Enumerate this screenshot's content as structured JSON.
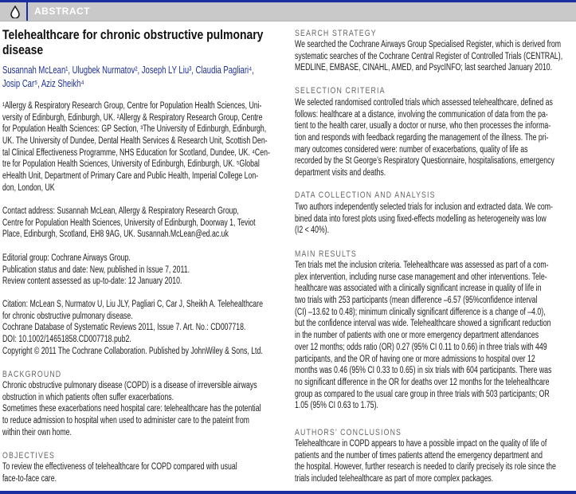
{
  "header": {
    "label": "ABSTRACT",
    "logo_icon": "cochrane-drop-icon",
    "accent_color": "#1b2fa0"
  },
  "left": {
    "title": [
      "Telehealthcare for chronic obstructive pulmonary",
      "disease"
    ],
    "authors": [
      "Susannah McLean¹, Ulugbek Nurmatov², Joseph LY Liu³, Claudia Pagliari⁴,",
      "Josip Car⁵, Aziz Sheikh⁴"
    ],
    "affiliations": [
      "¹Allergy & Respiratory Research Group, Centre for Population Health Sciences, Uni-",
      "versity of Edinburgh, Edinburgh, UK. ²Allergy & Respiratory Research Group, Centre",
      "for Population Health Sciences: GP Section, ³The University of Edinburgh, Edinburgh,",
      "UK. The University of Dundee, Dental Health Services & Research Unit, Scottish Den-",
      "tal Clinical Effectiveness Programme, NHS Education for Scotland, Dundee, UK. ⁴Cen-",
      "tre for Population Health Sciences, University of Edinburgh, Edinburgh, UK. ⁵Global",
      "eHealth Unit, Department of Primary Care and Public Health, Imperial College Lon-",
      "don, London, UK"
    ],
    "contact": [
      "Contact address: Susannah McLean, Allergy & Respiratory Research Group,",
      "Centre for Population Health Sciences, University of Edinburgh, Doorway 1, Teviot",
      "Place, Edinburgh, Scotland, EH8 9AG, UK. Susannah.McLean@ed.ac.uk"
    ],
    "editorial": [
      "Editorial group: Cochrane Airways Group.",
      "Publication status and date: New, published in Issue 7, 2011.",
      "Review content assessed as up-to-date: 12 January 2010."
    ],
    "citation": [
      "Citation: McLean S, Nurmatov U, Liu JLY, Pagliari C, Car J, Sheikh A. Telehealthcare",
      "for chronic obstructive pulmonary disease.",
      "Cochrane Database of Systematic Reviews 2011, Issue 7. Art. No.: CD007718.",
      "DOI: 10.1002/14651858.CD007718.pub2.",
      "Copyright © 2011 The Cochrane Collaboration. Published by JohnWiley & Sons, Ltd."
    ],
    "background": {
      "heading": [
        "BACKGROUND"
      ],
      "lines": [
        "Chronic obstructive pulmonary disease (COPD) is a disease of irreversible airways",
        "obstruction in which patients often suffer exacerbations.",
        "Sometimes these exacerbations need hospital care: telehealthcare has the potential",
        "to reduce admission to hospital when used to administer care to the pateint from",
        "within their own home."
      ]
    },
    "objectives": {
      "heading": [
        "OBJECTIVES"
      ],
      "lines": [
        "To review the effectiveness of telehealthcare for COPD compared with usual",
        "face-to-face care."
      ]
    }
  },
  "right": {
    "search": {
      "heading": [
        "SEARCH STRATEGY"
      ],
      "lines": [
        "We searched the Cochrane Airways Group Specialised Register, which is derived from",
        "systematic searches of the Cochrane Central Register of Controlled Trials (CENTRAL),",
        "MEDLINE, EMBASE, CINAHL, AMED, and PsycINFO; last searched January 2010."
      ]
    },
    "selection": {
      "heading": [
        "SELECTION CRITERIA"
      ],
      "lines": [
        "We selected randomised controlled trials which assessed telehealthcare, defined as",
        "follows: healthcare at a distance, involving the communication of data from the pa-",
        "tient to the health carer, usually a doctor or nurse, who then processes the informa-",
        "tion and responds with feedback regarding the management of the illness. The pri-",
        "mary outcomes considered were: number of exacerbations, quality of life as",
        "recorded by the St George’s Respiratory Questionnaire, hospitalisations, emergency",
        "department visits and deaths."
      ]
    },
    "data_collection": {
      "heading": [
        "DATA COLLECTION AND ANALYSIS"
      ],
      "lines": [
        "Two authors independently selected trials for inclusion and extracted data. We com-",
        "bined data into forest plots using fixed-effects modelling as heterogeneity was low",
        "(I2 < 40%)."
      ]
    },
    "main_results": {
      "heading": [
        "MAIN RESULTS"
      ],
      "lines": [
        "Ten trials met the inclusion criteria. Telehealthcare was assessed as part of a com-",
        "plex intervention, including nurse case management and other interventions. Tele-",
        "healthcare was associated with a clinically significant increase in quality of life in",
        "two trials with 253 participants (mean difference –6.57 (95%confidence interval",
        "(CI) –13.62 to 0.48); minimum clinically significant difference is a change of –4.0),",
        "but the confidence interval was wide. Telehealthcare showed a significant reduction",
        "in the number of patients with one or more emergency department attendances",
        "over 12 months; odds ratio (OR) 0.27 (95% CI 0.11 to 0.66) in three trials with 449",
        "participants, and the OR of having one or more admissions to hospital over 12",
        "months was 0.46 (95% CI 0.33 to 0.65) in six trials with 604 participants. There was",
        "no significant difference in the OR for deaths over 12 months for the telehealthcare",
        "group as compared to the usual care group in three trials with 503 participants; OR",
        "1.05 (95% CI 0.63 to 1.75)."
      ]
    },
    "conclusions": {
      "heading": [
        "AUTHORS’ CONCLUSIONS"
      ],
      "lines": [
        "Telehealthcare in COPD appears to have a possible impact on the quality of life of",
        "patients and the number of times patients attend the emergency department and",
        "the hospital. However, further research is needed to clarify precisely its role since the",
        "trials included telehealthcare as part of more complex packages."
      ]
    }
  }
}
